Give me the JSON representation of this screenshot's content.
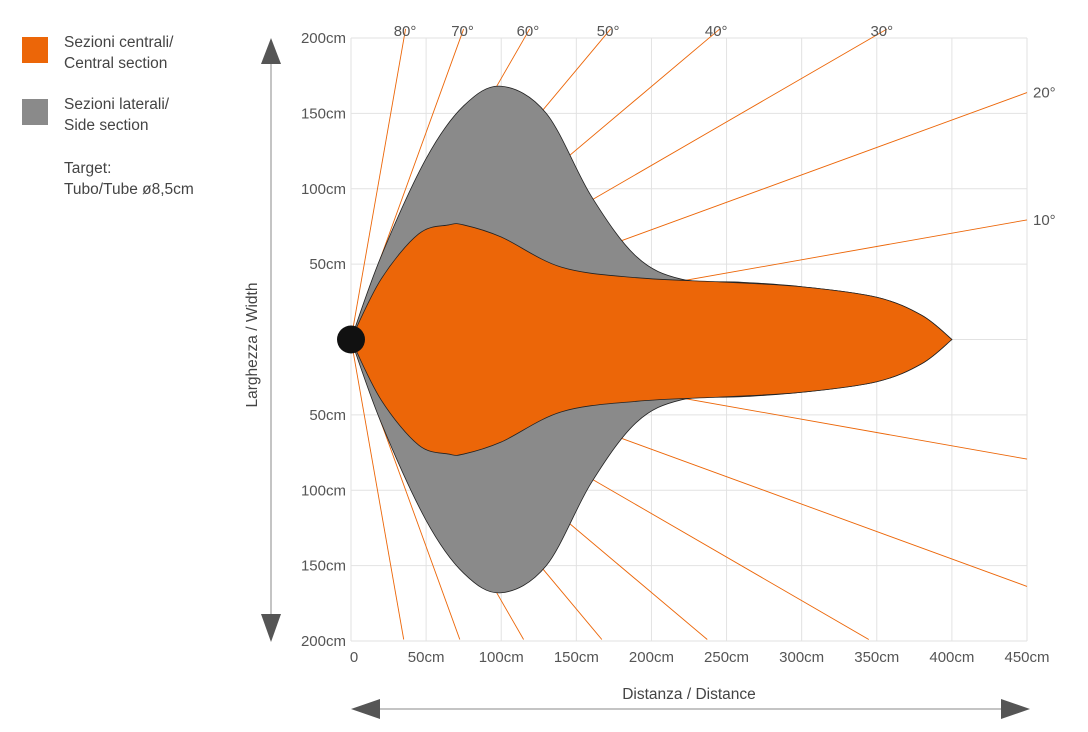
{
  "colors": {
    "central": "#ec6608",
    "side": "#8a8a8a",
    "grid": "#e2e2e2",
    "ray": "#ec6608",
    "arrow": "#555555",
    "dot": "#111111"
  },
  "legend": {
    "central": {
      "line1": "Sezioni centrali/",
      "line2": "Central section"
    },
    "side": {
      "line1": "Sezioni laterali/",
      "line2": "Side section"
    },
    "target": {
      "line1": "Target:",
      "line2": "Tubo/Tube ø8,5cm"
    }
  },
  "chart_data": {
    "type": "area",
    "title": "",
    "xlabel": "Distanza / Distance",
    "ylabel": "Larghezza / Width",
    "xlim": [
      0,
      450
    ],
    "ylim": [
      -200,
      200
    ],
    "grid": true,
    "x_ticks": [
      "0",
      "50cm",
      "100cm",
      "150cm",
      "200cm",
      "250cm",
      "300cm",
      "350cm",
      "400cm",
      "450cm"
    ],
    "x_tick_values": [
      0,
      50,
      100,
      150,
      200,
      250,
      300,
      350,
      400,
      450
    ],
    "y_ticks": [
      {
        "value": 200,
        "label": "200cm"
      },
      {
        "value": 150,
        "label": "150cm"
      },
      {
        "value": 100,
        "label": "100cm"
      },
      {
        "value": 50,
        "label": "50cm"
      },
      {
        "value": -50,
        "label": "50cm"
      },
      {
        "value": -100,
        "label": "100cm"
      },
      {
        "value": -150,
        "label": "150cm"
      },
      {
        "value": -200,
        "label": "200cm"
      }
    ],
    "angle_labels": [
      "80°",
      "70°",
      "60°",
      "50°",
      "40°",
      "30°",
      "20°",
      "10°"
    ],
    "angles": [
      80,
      70,
      60,
      50,
      40,
      30,
      20,
      10
    ],
    "series": [
      {
        "name": "Sezioni laterali/ Side section",
        "x": [
          0,
          20,
          50,
          75,
          100,
          130,
          160,
          190,
          220,
          260,
          300,
          350,
          380,
          400
        ],
        "half_width": [
          0,
          55,
          120,
          155,
          168,
          150,
          95,
          55,
          40,
          38,
          35,
          28,
          16,
          0
        ]
      },
      {
        "name": "Sezioni centrali/ Central section",
        "x": [
          0,
          20,
          45,
          65,
          75,
          100,
          140,
          190,
          250,
          300,
          350,
          380,
          400
        ],
        "half_width": [
          0,
          40,
          70,
          76,
          76,
          68,
          48,
          41,
          38,
          35,
          28,
          16,
          0
        ]
      }
    ],
    "target": {
      "x": 0,
      "y": 0,
      "diameter_cm": 8.5
    }
  }
}
